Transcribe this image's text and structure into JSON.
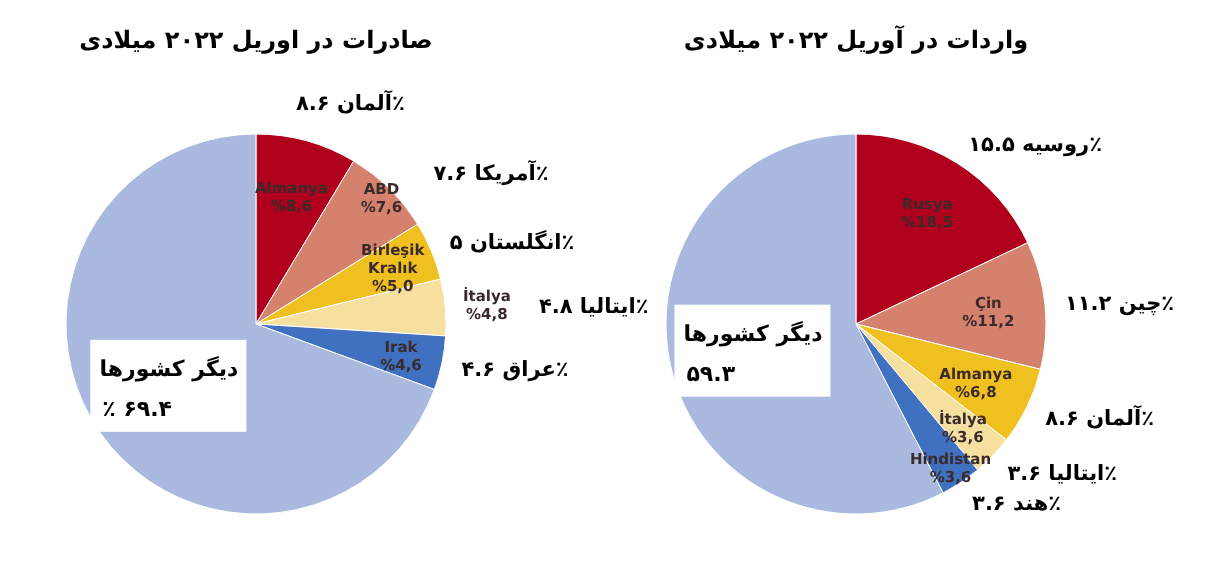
{
  "chart_data": [
    {
      "type": "pie",
      "title": "صادرات در اوریل ۲۰۲۲ میلادی",
      "categories": [
        "Almanya",
        "ABD",
        "Birleşik Kralık",
        "İtalya",
        "Irak",
        "دیگر کشورها"
      ],
      "values": [
        8.6,
        7.6,
        5.0,
        4.8,
        4.6,
        69.4
      ],
      "value_labels": [
        "%8,6",
        "%7,6",
        "%5,0",
        "%4,8",
        "%4,6",
        "٪ ۶۹.۴"
      ],
      "colors": [
        "#b0001e",
        "#d4826e",
        "#f0c020",
        "#f5e0a0",
        "#4070c0",
        "#a9b9e0"
      ],
      "annotations": [
        "آلمان ۸.۶٪",
        "آمریکا ۷.۶٪",
        "انگلستان ۵٪",
        "ایتالیا ۴.۸٪",
        "عراق ۴.۶٪"
      ]
    },
    {
      "type": "pie",
      "title": "واردات در آوریل ۲۰۲۲ میلادی",
      "categories": [
        "Rusya",
        "Çin",
        "Almanya",
        "İtalya",
        "Hindistan",
        "دیگر کشورها"
      ],
      "values": [
        18.5,
        11.2,
        6.8,
        3.6,
        3.6,
        59.3
      ],
      "value_labels": [
        "%18,5",
        "%11,2",
        "%6,8",
        "%3,6",
        "%3,6",
        "۵۹.۳"
      ],
      "colors": [
        "#b0001e",
        "#d4826e",
        "#f0c020",
        "#f5e0a0",
        "#4070c0",
        "#a9b9e0"
      ],
      "annotations": [
        "روسیه ۱۵.۵٪",
        "چین ۱۱.۲٪",
        "آلمان ۸.۶٪",
        "ایتالیا ۳.۶٪",
        "هند ۳.۶٪"
      ]
    }
  ]
}
